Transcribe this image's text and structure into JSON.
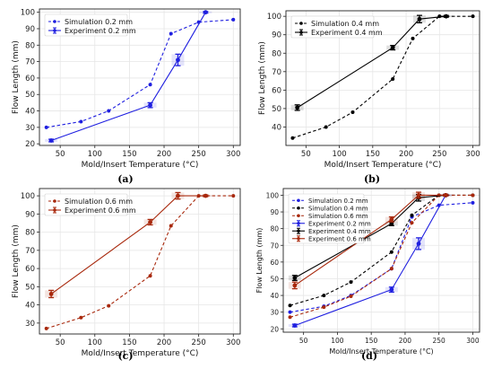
{
  "chart_data": [
    {
      "panel": "a",
      "caption": "(a)",
      "type": "line",
      "xlabel": "Mold/Insert Temperature (°C)",
      "ylabel": "Flow Length (mm)",
      "xlim": [
        20,
        310
      ],
      "ylim": [
        19,
        102
      ],
      "xticks": [
        50,
        100,
        150,
        200,
        250,
        300
      ],
      "yticks": [
        20,
        30,
        40,
        50,
        60,
        70,
        80,
        90,
        100
      ],
      "legend": "top-left",
      "series": [
        {
          "name": "Simulation 0.2 mm",
          "kind": "simulation",
          "color": "#1f1fe0",
          "x": [
            30,
            80,
            120,
            180,
            210,
            250,
            300
          ],
          "y": [
            30,
            33.5,
            40,
            56,
            87,
            94,
            95.5
          ]
        },
        {
          "name": "Experiment 0.2 mm",
          "kind": "experiment",
          "color": "#1f1fe0",
          "x": [
            37,
            180,
            220,
            260
          ],
          "y": [
            22,
            43.5,
            71,
            100
          ],
          "err": [
            0.8,
            1.5,
            3.5,
            0.5
          ]
        }
      ]
    },
    {
      "panel": "b",
      "caption": "(b)",
      "type": "line",
      "xlabel": "Mold/Insert Temperature (°C)",
      "ylabel": "Flow Length (mm)",
      "xlim": [
        20,
        310
      ],
      "ylim": [
        30,
        103
      ],
      "xticks": [
        50,
        100,
        150,
        200,
        250,
        300
      ],
      "yticks": [
        40,
        50,
        60,
        70,
        80,
        90,
        100
      ],
      "legend": "top-left",
      "series": [
        {
          "name": "Simulation 0.4 mm",
          "kind": "simulation",
          "color": "#000000",
          "x": [
            30,
            80,
            120,
            180,
            210,
            250,
            300
          ],
          "y": [
            34,
            40,
            48,
            66,
            88,
            100,
            100
          ]
        },
        {
          "name": "Experiment 0.4 mm",
          "kind": "experiment",
          "color": "#000000",
          "x": [
            37,
            180,
            220,
            260
          ],
          "y": [
            50.5,
            83,
            98.5,
            100
          ],
          "err": [
            1.5,
            1.2,
            2,
            0.5
          ]
        }
      ]
    },
    {
      "panel": "c",
      "caption": "(c)",
      "type": "line",
      "xlabel": "Mold/Insert Temperature (°C)",
      "ylabel": "Flow Length (mm)",
      "xlim": [
        20,
        310
      ],
      "ylim": [
        24,
        104
      ],
      "xticks": [
        50,
        100,
        150,
        200,
        250,
        300
      ],
      "yticks": [
        30,
        40,
        50,
        60,
        70,
        80,
        90,
        100
      ],
      "legend": "top-left",
      "series": [
        {
          "name": "Simulation 0.6 mm",
          "kind": "simulation",
          "color": "#a8280c",
          "x": [
            30,
            80,
            120,
            180,
            210,
            250,
            260,
            300
          ],
          "y": [
            27,
            33,
            39.5,
            56,
            83.5,
            100,
            100,
            100
          ]
        },
        {
          "name": "Experiment 0.6 mm",
          "kind": "experiment",
          "color": "#a8280c",
          "x": [
            37,
            180,
            220,
            260
          ],
          "y": [
            46,
            85.5,
            100,
            100
          ],
          "err": [
            2,
            1.5,
            1.8,
            0.5
          ]
        }
      ]
    },
    {
      "panel": "d",
      "caption": "(d)",
      "type": "line",
      "xlabel": "Mold/Insert Temperature (°C)",
      "ylabel": "Flow Length (mm)",
      "xlim": [
        20,
        310
      ],
      "ylim": [
        18,
        104
      ],
      "xticks": [
        50,
        100,
        150,
        200,
        250,
        300
      ],
      "yticks": [
        20,
        30,
        40,
        50,
        60,
        70,
        80,
        90,
        100
      ],
      "legend": "top-left",
      "series": [
        {
          "name": "Simulation 0.2 mm",
          "kind": "simulation",
          "color": "#1f1fe0",
          "x": [
            30,
            80,
            120,
            180,
            210,
            250,
            300
          ],
          "y": [
            30,
            33.5,
            40,
            56,
            87,
            94,
            95.5
          ]
        },
        {
          "name": "Simulation 0.4 mm",
          "kind": "simulation",
          "color": "#000000",
          "x": [
            30,
            80,
            120,
            180,
            210,
            250,
            300
          ],
          "y": [
            34,
            40,
            48,
            66,
            88,
            100,
            100
          ]
        },
        {
          "name": "Simulation 0.6 mm",
          "kind": "simulation",
          "color": "#a8280c",
          "x": [
            30,
            80,
            120,
            180,
            210,
            250,
            260,
            300
          ],
          "y": [
            27,
            33,
            39.5,
            56,
            83.5,
            100,
            100,
            100
          ]
        },
        {
          "name": "Experiment 0.2 mm",
          "kind": "experiment",
          "color": "#1f1fe0",
          "x": [
            37,
            180,
            220,
            260
          ],
          "y": [
            22,
            43.5,
            71,
            100
          ],
          "err": [
            0.8,
            1.5,
            3.5,
            0.5
          ]
        },
        {
          "name": "Experiment 0.4 mm",
          "kind": "experiment",
          "color": "#000000",
          "x": [
            37,
            180,
            220,
            260
          ],
          "y": [
            50.5,
            83,
            98.5,
            100
          ],
          "err": [
            1.5,
            1.2,
            2,
            0.5
          ]
        },
        {
          "name": "Experiment 0.6 mm",
          "kind": "experiment",
          "color": "#a8280c",
          "x": [
            37,
            180,
            220,
            260
          ],
          "y": [
            46,
            85.5,
            100,
            100
          ],
          "err": [
            2,
            1.5,
            1.8,
            0.5
          ]
        }
      ]
    }
  ]
}
